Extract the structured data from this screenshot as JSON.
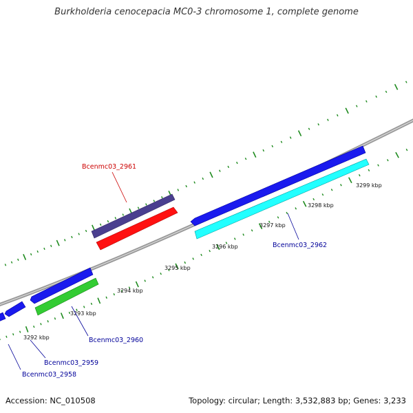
{
  "title": "Burkholderia cenocepacia MC0-3 chromosome 1, complete genome",
  "footer": {
    "accession": "Accession: NC_010508",
    "summary": "Topology: circular; Length: 3,532,883 bp; Genes: 3,233"
  },
  "scale": {
    "unit": "kbp",
    "labels": [
      "3292 kbp",
      "3293 kbp",
      "3294 kbp",
      "3295 kbp",
      "3296 kbp",
      "3297 kbp",
      "3298 kbp",
      "3299 kbp"
    ]
  },
  "genes": [
    {
      "id": "Bcenmc03_2961",
      "label": "Bcenmc03_2961",
      "label_color": "#cc0000",
      "feature_color": "#ff1111",
      "strand": "forward"
    },
    {
      "id": "Bcenmc03_2962",
      "label": "Bcenmc03_2962",
      "label_color": "#000099",
      "feature_color": "#22ffff",
      "strand": "reverse"
    },
    {
      "id": "Bcenmc03_2960",
      "label": "Bcenmc03_2960",
      "label_color": "#000099",
      "feature_color": "#33cc33",
      "strand": "reverse"
    },
    {
      "id": "Bcenmc03_2959",
      "label": "Bcenmc03_2959",
      "label_color": "#000099",
      "feature_color": "#1a1aee",
      "strand": "reverse"
    },
    {
      "id": "Bcenmc03_2958",
      "label": "Bcenmc03_2958",
      "label_color": "#000099",
      "feature_color": "#1a1aee",
      "strand": "reverse"
    }
  ],
  "colors": {
    "backbone": "#888888",
    "cds_forward": "#1a1aee",
    "cog_forward": "#4a3f8f",
    "tick": "#1d8a1d"
  }
}
